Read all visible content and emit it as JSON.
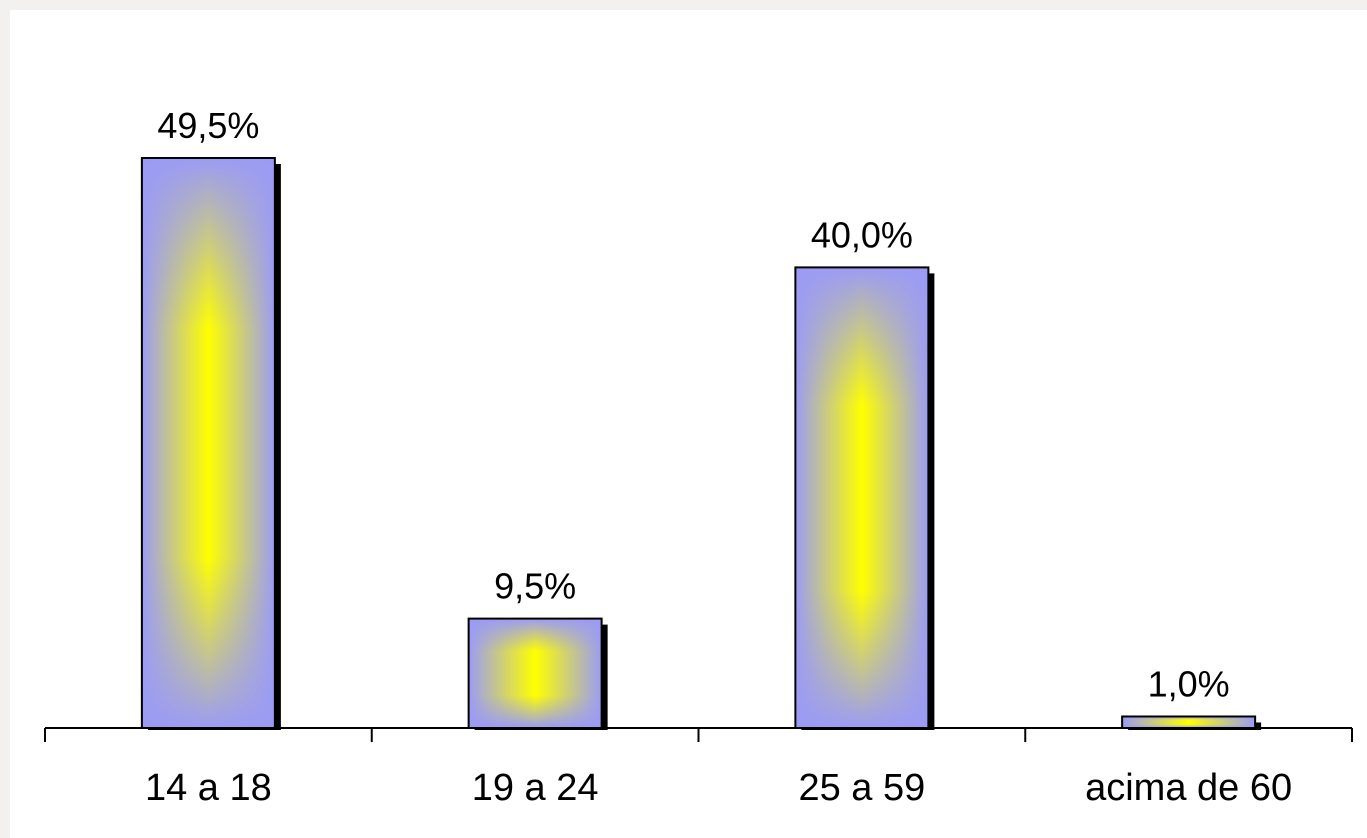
{
  "chart_data": {
    "type": "bar",
    "title": "",
    "xlabel": "",
    "ylabel": "",
    "categories": [
      "14 a 18",
      "19 a 24",
      "25 a 59",
      "acima de 60"
    ],
    "values": [
      49.5,
      9.5,
      40.0,
      1.0
    ],
    "value_labels": [
      "49,5%",
      "9,5%",
      "40,0%",
      "1,0%"
    ],
    "ylim": [
      0,
      49.5
    ],
    "grid": false,
    "legend": "none",
    "colors": {
      "bar_edge": "#9b9bf5",
      "bar_center": "#ffff00",
      "bar_outline": "#000000",
      "shadow": "#000000",
      "axis": "#000000"
    }
  }
}
